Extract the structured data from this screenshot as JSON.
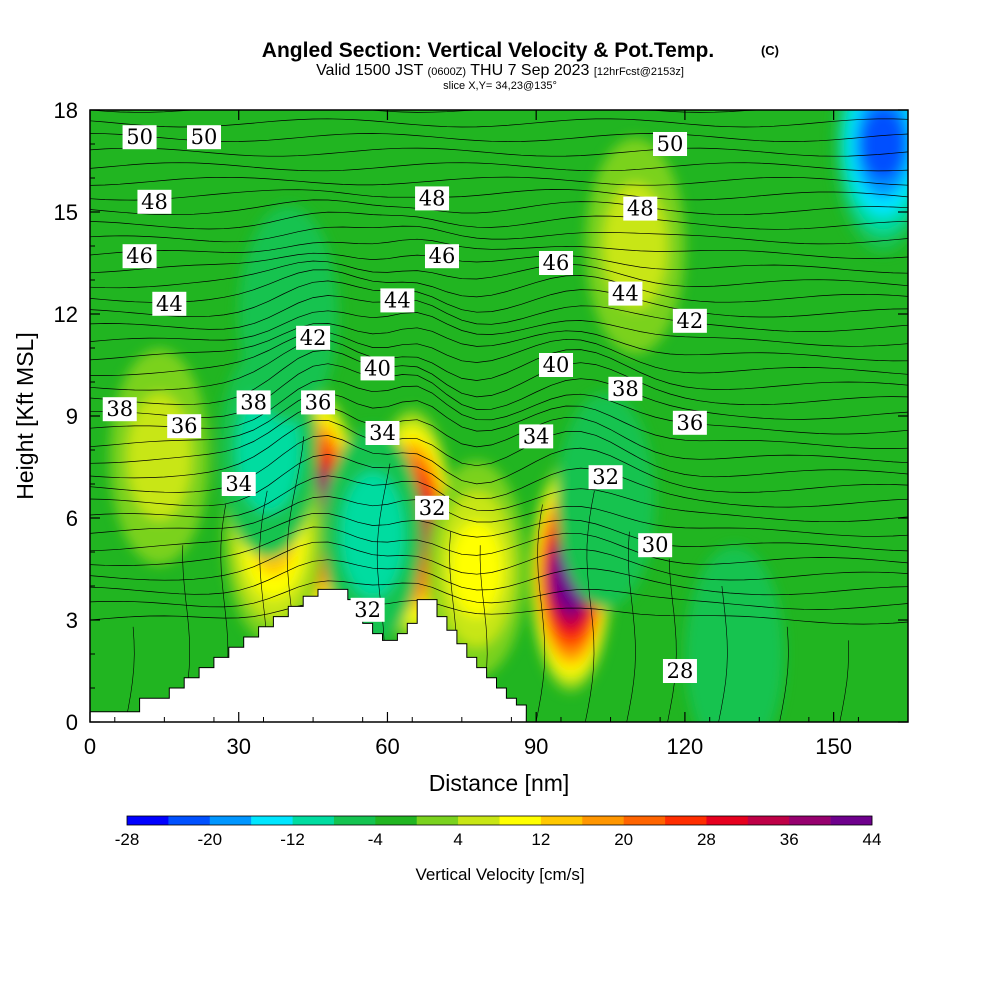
{
  "title": {
    "main": "Angled Section: Vertical Velocity & Pot.Temp.",
    "copyright": "(C)",
    "valid_prefix": "Valid 1500 JST",
    "valid_z": "(0600Z)",
    "valid_date": "THU 7 Sep 2023",
    "forecast": "[12hrFcst@2153z]",
    "slice": "slice X,Y= 34,23@135°"
  },
  "chart_data": {
    "type": "heatmap",
    "xlabel": "Distance [nm]",
    "ylabel": "Height [Kft MSL]",
    "xlim": [
      0,
      165
    ],
    "ylim": [
      0,
      18
    ],
    "x_ticks": [
      "0",
      "30",
      "60",
      "90",
      "120",
      "150"
    ],
    "y_ticks": [
      "0",
      "3",
      "6",
      "9",
      "12",
      "15",
      "18"
    ],
    "terrain": {
      "x": [
        0,
        10,
        16,
        19,
        22,
        25,
        28,
        31,
        34,
        37,
        40,
        43,
        46,
        49,
        52,
        55,
        57,
        59,
        62,
        64,
        66,
        68,
        70,
        72,
        74,
        76,
        78,
        80,
        82,
        84,
        86,
        88
      ],
      "height": [
        0.3,
        0.7,
        1.0,
        1.3,
        1.6,
        1.9,
        2.2,
        2.5,
        2.8,
        3.1,
        3.4,
        3.7,
        3.9,
        3.9,
        3.6,
        2.9,
        2.6,
        2.4,
        2.6,
        2.9,
        3.6,
        3.6,
        3.1,
        2.7,
        2.3,
        1.9,
        1.6,
        1.3,
        1.0,
        0.7,
        0.5,
        0.3
      ]
    },
    "vertical_velocity_cells": [
      {
        "x": 46,
        "y": 6.3,
        "value": 36
      },
      {
        "x": 65,
        "y": 5.8,
        "value": 32
      },
      {
        "x": 97,
        "y": 4.3,
        "value": 40
      },
      {
        "x": 37,
        "y": 5.5,
        "value": 12
      },
      {
        "x": 78,
        "y": 4.5,
        "value": 8
      },
      {
        "x": 14,
        "y": 7.8,
        "value": 4
      },
      {
        "x": 57,
        "y": 5.5,
        "value": -12
      },
      {
        "x": 36,
        "y": 8.0,
        "value": -12
      },
      {
        "x": 104,
        "y": 6.5,
        "value": -8
      },
      {
        "x": 130,
        "y": 2.0,
        "value": -8
      },
      {
        "x": 160,
        "y": 17.0,
        "value": -24
      },
      {
        "x": 110,
        "y": 14.0,
        "value": 4
      },
      {
        "x": 40,
        "y": 12.0,
        "value": -4
      }
    ],
    "potential_temperature_labels": [
      {
        "x": 10,
        "y": 17.2,
        "text": "50"
      },
      {
        "x": 23,
        "y": 17.2,
        "text": "50"
      },
      {
        "x": 117,
        "y": 17.0,
        "text": "50"
      },
      {
        "x": 13,
        "y": 15.3,
        "text": "48"
      },
      {
        "x": 69,
        "y": 15.4,
        "text": "48"
      },
      {
        "x": 111,
        "y": 15.1,
        "text": "48"
      },
      {
        "x": 10,
        "y": 13.7,
        "text": "46"
      },
      {
        "x": 71,
        "y": 13.7,
        "text": "46"
      },
      {
        "x": 94,
        "y": 13.5,
        "text": "46"
      },
      {
        "x": 16,
        "y": 12.3,
        "text": "44"
      },
      {
        "x": 62,
        "y": 12.4,
        "text": "44"
      },
      {
        "x": 108,
        "y": 12.6,
        "text": "44"
      },
      {
        "x": 45,
        "y": 11.3,
        "text": "42"
      },
      {
        "x": 121,
        "y": 11.8,
        "text": "42"
      },
      {
        "x": 58,
        "y": 10.4,
        "text": "40"
      },
      {
        "x": 94,
        "y": 10.5,
        "text": "40"
      },
      {
        "x": 6,
        "y": 9.2,
        "text": "38"
      },
      {
        "x": 33,
        "y": 9.4,
        "text": "38"
      },
      {
        "x": 108,
        "y": 9.8,
        "text": "38"
      },
      {
        "x": 19,
        "y": 8.7,
        "text": "36"
      },
      {
        "x": 46,
        "y": 9.4,
        "text": "36"
      },
      {
        "x": 121,
        "y": 8.8,
        "text": "36"
      },
      {
        "x": 59,
        "y": 8.5,
        "text": "34"
      },
      {
        "x": 90,
        "y": 8.4,
        "text": "34"
      },
      {
        "x": 30,
        "y": 7.0,
        "text": "34"
      },
      {
        "x": 69,
        "y": 6.3,
        "text": "32"
      },
      {
        "x": 104,
        "y": 7.2,
        "text": "32"
      },
      {
        "x": 56,
        "y": 3.3,
        "text": "32"
      },
      {
        "x": 114,
        "y": 5.2,
        "text": "30"
      },
      {
        "x": 119,
        "y": 1.5,
        "text": "28"
      }
    ],
    "colorbar": {
      "title": "Vertical Velocity [cm/s]",
      "min": -28,
      "max": 44,
      "step": 4,
      "tick_labels": [
        "-28",
        "-20",
        "-12",
        "-4",
        "4",
        "12",
        "20",
        "28",
        "36",
        "44"
      ],
      "colors": [
        "#0000ff",
        "#0050ff",
        "#0096ff",
        "#00e6ff",
        "#00dca0",
        "#14c350",
        "#21b521",
        "#7ad21e",
        "#c8e614",
        "#ffff00",
        "#ffc800",
        "#ff9600",
        "#ff6400",
        "#ff2d00",
        "#e6001e",
        "#be0046",
        "#96006e",
        "#6e008c"
      ]
    }
  }
}
